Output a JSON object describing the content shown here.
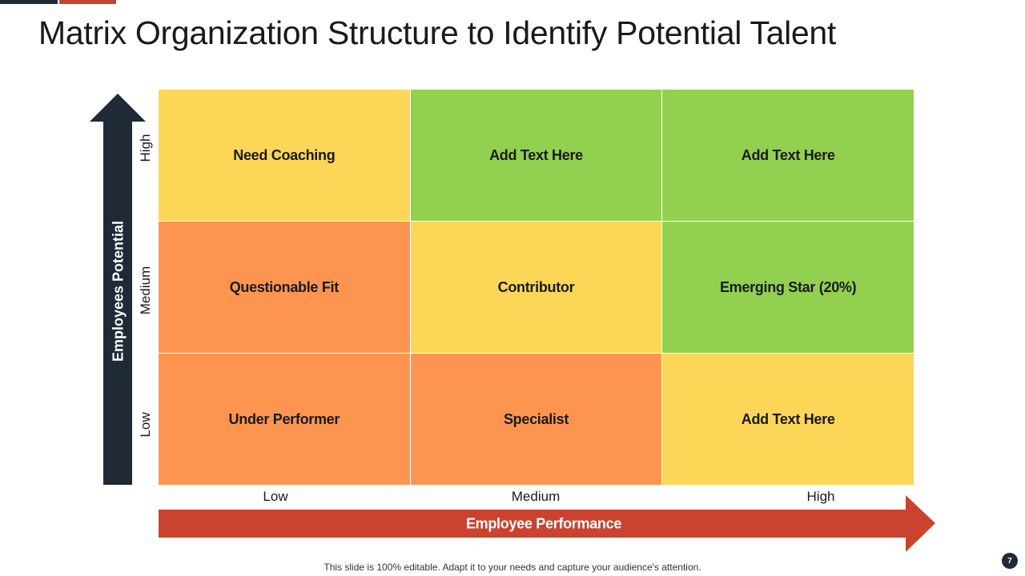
{
  "title": "Matrix Organization Structure to Identify Potential Talent",
  "y_axis": {
    "label": "Employees Potential",
    "ticks": {
      "high": "High",
      "medium": "Medium",
      "low": "Low"
    }
  },
  "x_axis": {
    "label": "Employee Performance",
    "ticks": {
      "low": "Low",
      "medium": "Medium",
      "high": "High"
    }
  },
  "matrix": {
    "rows": [
      {
        "level": "High",
        "cells": [
          {
            "label": "Need Coaching",
            "color": "#fcd657"
          },
          {
            "label": "Add Text Here",
            "color": "#92d050"
          },
          {
            "label": "Add Text Here",
            "color": "#92d050"
          }
        ]
      },
      {
        "level": "Medium",
        "cells": [
          {
            "label": "Questionable Fit",
            "color": "#fd9550"
          },
          {
            "label": "Contributor",
            "color": "#fcd657"
          },
          {
            "label": "Emerging Star (20%)",
            "color": "#92d050"
          }
        ]
      },
      {
        "level": "Low",
        "cells": [
          {
            "label": "Under Performer",
            "color": "#fd9550"
          },
          {
            "label": "Specialist",
            "color": "#fd9550"
          },
          {
            "label": "Add Text Here",
            "color": "#fcd657"
          }
        ]
      }
    ]
  },
  "colors": {
    "vertical_arrow": "#1f2a36",
    "horizontal_arrow": "#c9432f",
    "yellow": "#fcd657",
    "green": "#92d050",
    "orange": "#fd9550"
  },
  "footer": "This slide is 100% editable. Adapt it to your needs and capture your audience's attention.",
  "page_number": "7"
}
